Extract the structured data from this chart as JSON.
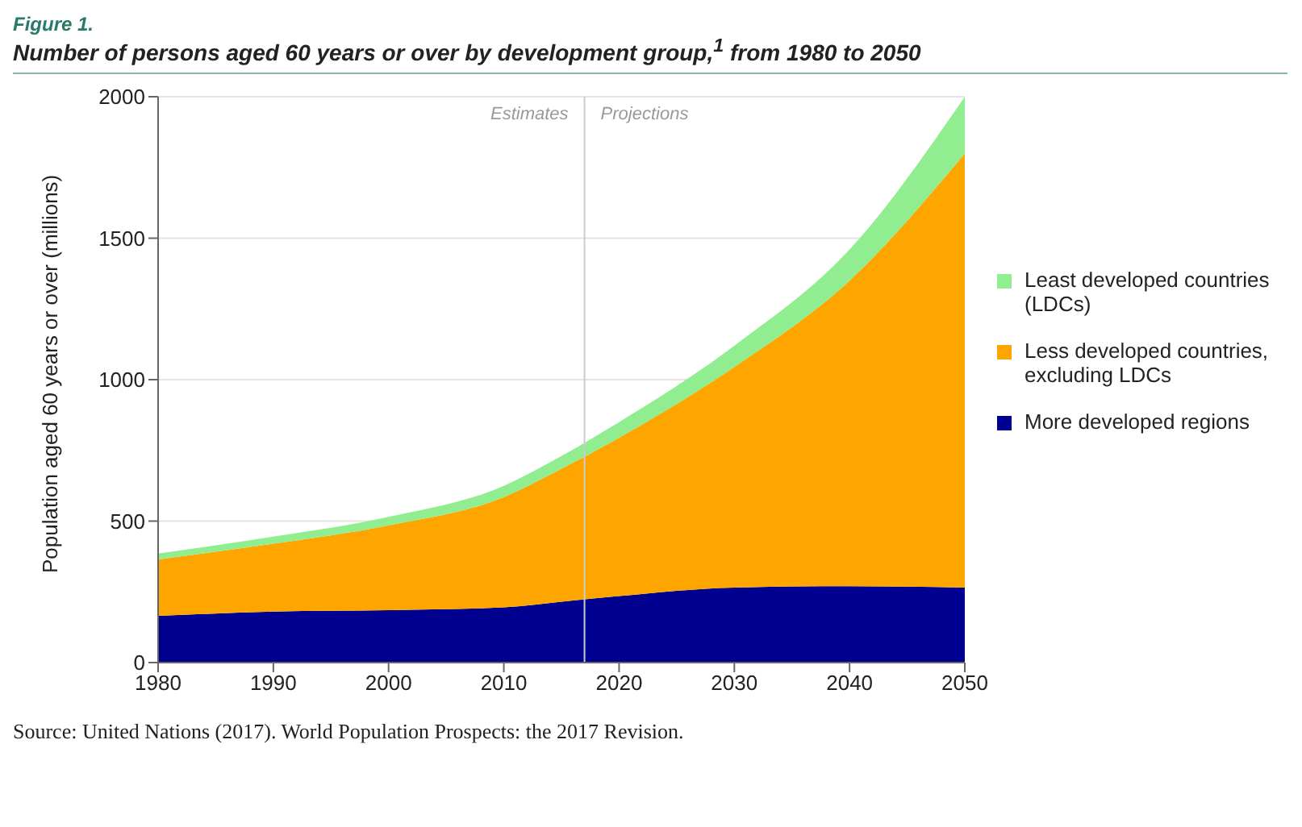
{
  "chart_data": {
    "type": "area",
    "stacked": true,
    "title": "Number of persons aged 60 years or over by development group,$^{1}$ from 1980 to 2050",
    "subtitle": "Figure 1.",
    "ylabel": "Population aged 60 years or over (millions)",
    "x": [
      1980,
      1990,
      2000,
      2010,
      2015,
      2020,
      2030,
      2040,
      2050
    ],
    "series": [
      {
        "name": "More developed regions",
        "color": "#000090",
        "values": [
          165,
          180,
          185,
          195,
          215,
          235,
          265,
          270,
          265
        ]
      },
      {
        "name": "Less developed countries, excluding LDCs",
        "color": "#ffa500",
        "values": [
          200,
          240,
          300,
          390,
          470,
          560,
          780,
          1080,
          1535
        ]
      },
      {
        "name": "Least developed countries (LDCs)",
        "color": "#90ee90",
        "values": [
          20,
          25,
          30,
          40,
          45,
          55,
          75,
          110,
          200
        ]
      }
    ],
    "xlim": [
      1980,
      2050
    ],
    "xticks": [
      1980,
      1990,
      2000,
      2010,
      2020,
      2030,
      2040,
      2050
    ],
    "ylim": [
      0,
      2000
    ],
    "yticks": [
      0,
      500,
      1000,
      1500,
      2000
    ],
    "grid": "y",
    "legend": "right",
    "ref_lines": [
      {
        "axis": "x",
        "value": 2017,
        "color": "#cccccc"
      }
    ],
    "annotations": [
      "Estimates",
      "Projections",
      "Source: United Nations (2017). World Population Prospects: the 2017 Revision."
    ]
  }
}
